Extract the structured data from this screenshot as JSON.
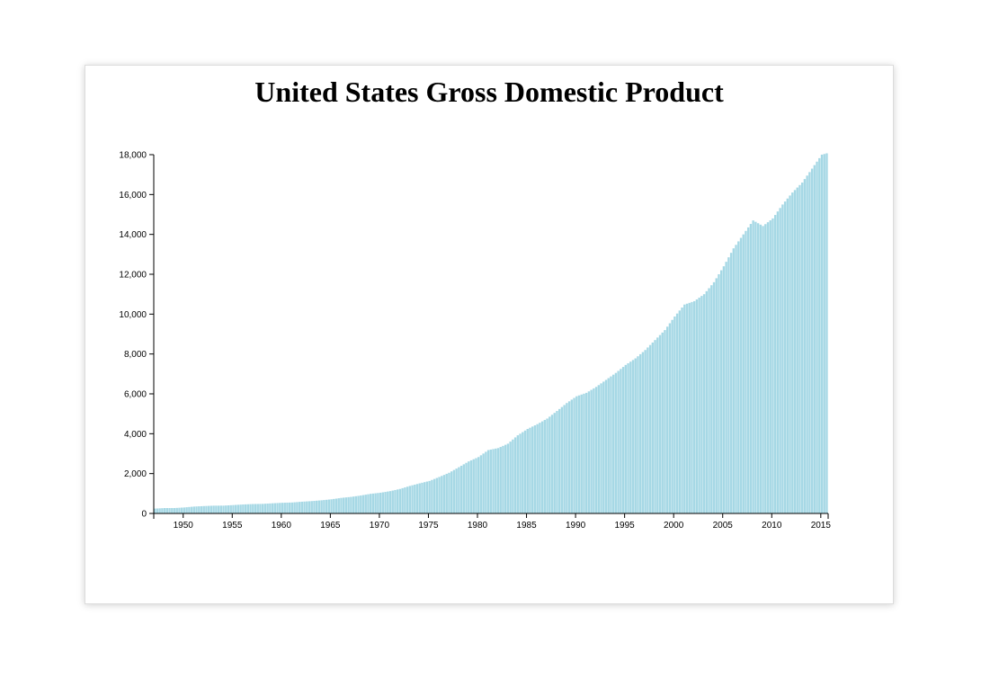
{
  "chart_data": {
    "type": "bar",
    "title": "United States Gross Domestic Product",
    "xlabel": "",
    "ylabel": "",
    "bar_color": "#a6d8e5",
    "xlim": [
      1947,
      2015.75
    ],
    "ylim": [
      0,
      18000
    ],
    "y_ticks": [
      0,
      2000,
      4000,
      6000,
      8000,
      10000,
      12000,
      14000,
      16000,
      18000
    ],
    "y_tick_labels": [
      "0",
      "2,000",
      "4,000",
      "6,000",
      "8,000",
      "10,000",
      "12,000",
      "14,000",
      "16,000",
      "18,000"
    ],
    "x_ticks": [
      1950,
      1955,
      1960,
      1965,
      1970,
      1975,
      1980,
      1985,
      1990,
      1995,
      2000,
      2005,
      2010,
      2015
    ],
    "x_tick_labels": [
      "1950",
      "1955",
      "1960",
      "1965",
      "1970",
      "1975",
      "1980",
      "1985",
      "1990",
      "1995",
      "2000",
      "2005",
      "2010",
      "2015"
    ],
    "frequency": "quarterly",
    "years": [
      1947,
      1948,
      1949,
      1950,
      1951,
      1952,
      1953,
      1954,
      1955,
      1956,
      1957,
      1958,
      1959,
      1960,
      1961,
      1962,
      1963,
      1964,
      1965,
      1966,
      1967,
      1968,
      1969,
      1970,
      1971,
      1972,
      1973,
      1974,
      1975,
      1976,
      1977,
      1978,
      1979,
      1980,
      1981,
      1982,
      1983,
      1984,
      1985,
      1986,
      1987,
      1988,
      1989,
      1990,
      1991,
      1992,
      1993,
      1994,
      1995,
      1996,
      1997,
      1998,
      1999,
      2000,
      2001,
      2002,
      2003,
      2004,
      2005,
      2006,
      2007,
      2008,
      2009,
      2010,
      2011,
      2012,
      2013,
      2014,
      2015,
      2015.75
    ],
    "values": [
      243,
      270,
      272,
      300,
      345,
      370,
      390,
      392,
      420,
      450,
      472,
      480,
      510,
      535,
      550,
      590,
      620,
      660,
      710,
      780,
      830,
      900,
      985,
      1040,
      1120,
      1230,
      1380,
      1510,
      1630,
      1830,
      2040,
      2320,
      2610,
      2830,
      3180,
      3280,
      3500,
      3920,
      4240,
      4480,
      4760,
      5140,
      5540,
      5880,
      6050,
      6350,
      6700,
      7050,
      7450,
      7780,
      8200,
      8700,
      9200,
      9880,
      10480,
      10650,
      11000,
      11600,
      12400,
      13300,
      14000,
      14700,
      14420,
      14800,
      15500,
      16100,
      16600,
      17300,
      18000,
      18100
    ]
  }
}
